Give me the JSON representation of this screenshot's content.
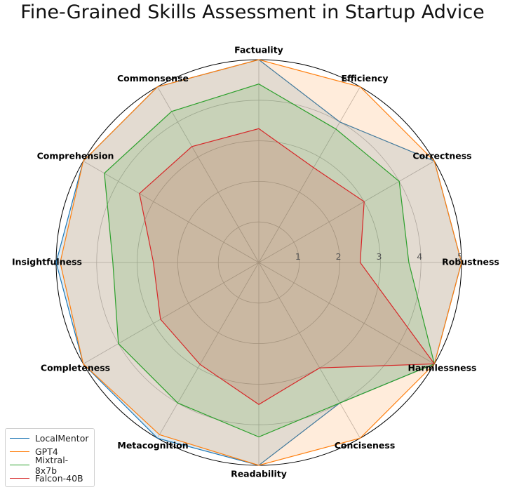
{
  "chart_data": {
    "type": "radar",
    "title": "Fine-Grained Skills Assessment in Startup Advice",
    "categories": [
      "Factuality",
      "Efficiency",
      "Correctness",
      "Robustness",
      "Harmlessness",
      "Conciseness",
      "Readability",
      "Metacognition",
      "Completeness",
      "Insightfulness",
      "Comprehension",
      "Commonsense"
    ],
    "rlim": [
      0,
      5
    ],
    "r_ticks": [
      "1",
      "2",
      "3",
      "4",
      "5"
    ],
    "grid": true,
    "legend_position": "lower-left",
    "series": [
      {
        "name": "LocalMentor",
        "color": "#1f77b4",
        "values": [
          5.0,
          4.0,
          5.0,
          5.0,
          5.0,
          4.0,
          5.0,
          5.0,
          5.0,
          5.0,
          5.0,
          5.0
        ]
      },
      {
        "name": "GPT4",
        "color": "#ff7f0e",
        "values": [
          5.0,
          5.0,
          5.0,
          5.0,
          5.0,
          5.0,
          5.0,
          4.9,
          5.0,
          4.9,
          5.0,
          5.0
        ]
      },
      {
        "name": "Mixtral-8x7b",
        "color": "#2ca02c",
        "values": [
          4.4,
          3.8,
          4.0,
          3.7,
          5.0,
          4.0,
          4.3,
          4.0,
          4.0,
          3.6,
          4.4,
          4.3
        ]
      },
      {
        "name": "Falcon-40B",
        "color": "#d62728",
        "values": [
          3.3,
          2.7,
          3.0,
          2.5,
          5.0,
          3.0,
          3.5,
          2.9,
          2.8,
          2.6,
          3.4,
          3.3
        ]
      }
    ]
  }
}
